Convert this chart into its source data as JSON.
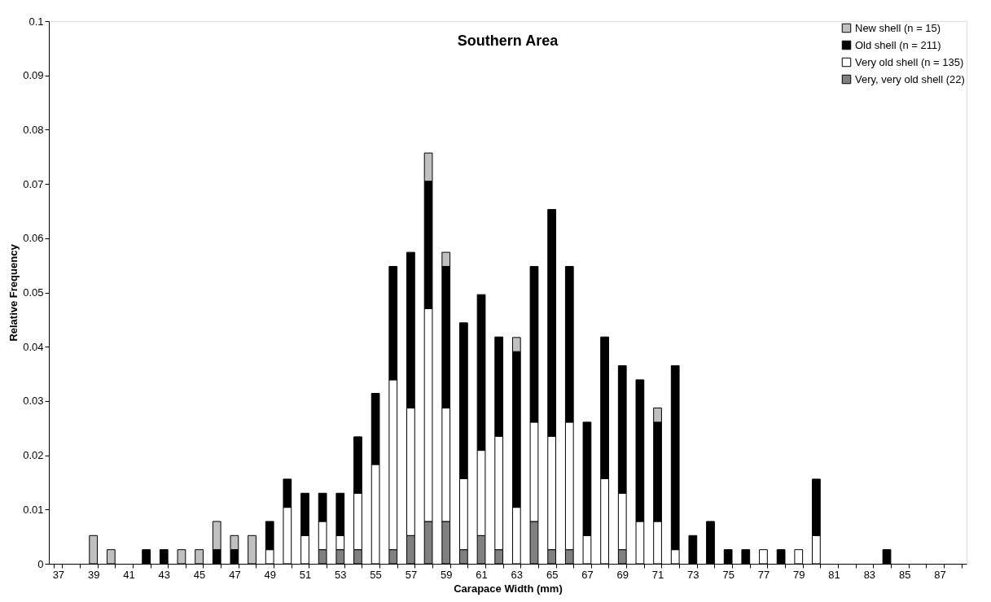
{
  "chart_data": {
    "type": "bar",
    "title": "Southern Area",
    "xlabel": "Carapace Width (mm)",
    "ylabel": "Relative Frequency",
    "categories": [
      "37",
      null,
      "39",
      null,
      "41",
      null,
      "43",
      null,
      "45",
      null,
      "47",
      null,
      "49",
      null,
      "51",
      null,
      "53",
      null,
      "55",
      null,
      "57",
      null,
      "59",
      null,
      "61",
      null,
      "63",
      null,
      "65",
      null,
      "67",
      null,
      "69",
      null,
      "71",
      null,
      "73",
      null,
      "75",
      null,
      "77",
      null,
      "79",
      null,
      "81",
      null,
      "83",
      null,
      "85",
      null,
      "87",
      null
    ],
    "stacked": true,
    "ylim": [
      0,
      0.1
    ],
    "yticks": [
      0,
      0.01,
      0.02,
      0.03,
      0.04,
      0.05,
      0.06,
      0.07,
      0.08,
      0.09,
      0.1
    ],
    "grid": false,
    "legend": "top right",
    "series": [
      {
        "name": "Very, very old shell (22)",
        "color": "#808080",
        "values": [
          null,
          null,
          null,
          null,
          null,
          null,
          null,
          null,
          null,
          null,
          null,
          null,
          null,
          null,
          null,
          0.0026,
          0.0026,
          0.0026,
          null,
          0.0026,
          0.0052,
          0.0078,
          0.0078,
          0.0026,
          0.0052,
          0.0026,
          null,
          0.0078,
          0.0026,
          0.0026,
          null,
          null,
          0.0026,
          null,
          null,
          null,
          null,
          null,
          null,
          null,
          null,
          null,
          null,
          null,
          null,
          null,
          null,
          null,
          null,
          null,
          null,
          null
        ]
      },
      {
        "name": "Very old shell (n = 135)",
        "color": "#ffffff",
        "values": [
          null,
          null,
          null,
          null,
          null,
          null,
          null,
          null,
          null,
          null,
          null,
          null,
          0.0026,
          0.0104,
          0.0052,
          0.0052,
          0.0026,
          0.0104,
          0.0183,
          0.0313,
          0.0235,
          0.0392,
          0.0209,
          0.0131,
          0.0157,
          0.0209,
          0.0104,
          0.0183,
          0.0209,
          0.0235,
          0.0052,
          0.0157,
          0.0104,
          0.0078,
          0.0078,
          0.0026,
          null,
          null,
          null,
          null,
          0.0026,
          null,
          0.0026,
          0.0052,
          null,
          null,
          null,
          null,
          null,
          null,
          null,
          null
        ]
      },
      {
        "name": "Old shell (n = 211)",
        "color": "#000000",
        "values": [
          null,
          null,
          null,
          null,
          null,
          0.0026,
          0.0026,
          null,
          null,
          0.0026,
          0.0026,
          null,
          0.0052,
          0.0052,
          0.0078,
          0.0052,
          0.0078,
          0.0104,
          0.0131,
          0.0209,
          0.0287,
          0.0235,
          0.0261,
          0.0287,
          0.0287,
          0.0183,
          0.0287,
          0.0287,
          0.0418,
          0.0287,
          0.0209,
          0.0261,
          0.0235,
          0.0261,
          0.0183,
          0.0339,
          0.0052,
          0.0078,
          0.0026,
          0.0026,
          null,
          0.0026,
          null,
          0.0104,
          null,
          null,
          null,
          0.0026,
          null,
          null,
          null,
          null
        ]
      },
      {
        "name": "New shell (n = 15)",
        "color": "#c0c0c0",
        "values": [
          null,
          null,
          0.0052,
          0.0026,
          null,
          null,
          null,
          0.0026,
          0.0026,
          0.0052,
          0.0026,
          0.0052,
          null,
          null,
          null,
          null,
          null,
          null,
          null,
          null,
          null,
          0.0052,
          0.0026,
          null,
          null,
          null,
          0.0026,
          null,
          null,
          null,
          null,
          null,
          null,
          null,
          0.0026,
          null,
          null,
          null,
          null,
          null,
          null,
          null,
          null,
          null,
          null,
          null,
          null,
          null,
          null,
          null,
          null,
          null
        ]
      }
    ]
  }
}
